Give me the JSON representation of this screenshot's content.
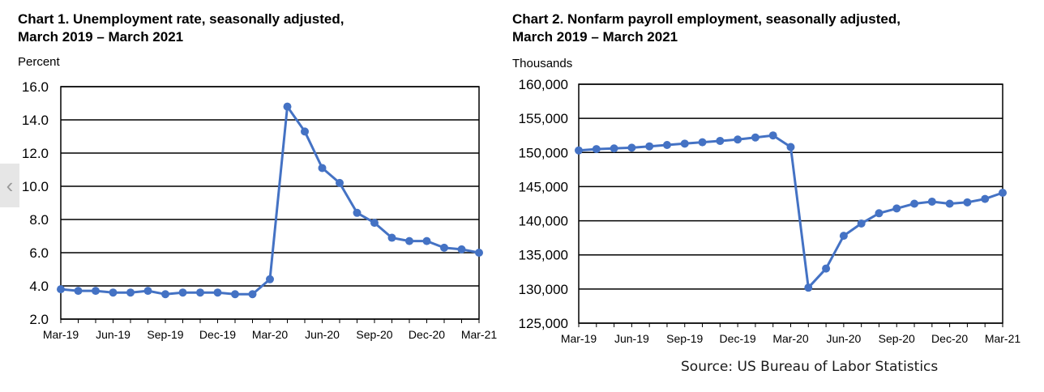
{
  "source": "Source: US Bureau of Labor Statistics",
  "icons": {
    "nav_left": "chevron-left-icon"
  },
  "colors": {
    "series": "#4472C4",
    "grid": "#000000",
    "background": "#ffffff"
  },
  "chart_data": [
    {
      "type": "line",
      "title_line1": "Chart 1. Unemployment rate, seasonally adjusted,",
      "title_line2": "March 2019 – March 2021",
      "xlabel": "",
      "ylabel": "Percent",
      "ylim": [
        2.0,
        16.0
      ],
      "y_ticks": [
        2.0,
        4.0,
        6.0,
        8.0,
        10.0,
        12.0,
        14.0,
        16.0
      ],
      "y_tick_labels": [
        "2.0",
        "4.0",
        "6.0",
        "8.0",
        "10.0",
        "12.0",
        "14.0",
        "16.0"
      ],
      "x_tick_labels": [
        "Mar-19",
        "Jun-19",
        "Sep-19",
        "Dec-19",
        "Mar-20",
        "Jun-20",
        "Sep-20",
        "Dec-20",
        "Mar-21"
      ],
      "grid": true,
      "series": [
        {
          "name": "Unemployment rate",
          "values": [
            3.8,
            3.7,
            3.7,
            3.6,
            3.6,
            3.7,
            3.5,
            3.6,
            3.6,
            3.6,
            3.5,
            3.5,
            4.4,
            14.8,
            13.3,
            11.1,
            10.2,
            8.4,
            7.8,
            6.9,
            6.7,
            6.7,
            6.3,
            6.2,
            6.0
          ]
        }
      ]
    },
    {
      "type": "line",
      "title_line1": "Chart 2. Nonfarm payroll employment, seasonally adjusted,",
      "title_line2": "March 2019 – March 2021",
      "xlabel": "",
      "ylabel": "Thousands",
      "ylim": [
        125000,
        160000
      ],
      "y_ticks": [
        125000,
        130000,
        135000,
        140000,
        145000,
        150000,
        155000,
        160000
      ],
      "y_tick_labels": [
        "125,000",
        "130,000",
        "135,000",
        "140,000",
        "145,000",
        "150,000",
        "155,000",
        "160,000"
      ],
      "x_tick_labels": [
        "Mar-19",
        "Jun-19",
        "Sep-19",
        "Dec-19",
        "Mar-20",
        "Jun-20",
        "Sep-20",
        "Dec-20",
        "Mar-21"
      ],
      "grid": true,
      "series": [
        {
          "name": "Nonfarm payroll employment",
          "values": [
            150300,
            150500,
            150600,
            150700,
            150900,
            151100,
            151300,
            151500,
            151700,
            151900,
            152200,
            152500,
            150800,
            130200,
            133000,
            137800,
            139600,
            141100,
            141800,
            142500,
            142800,
            142500,
            142700,
            143200,
            144100
          ]
        }
      ]
    }
  ]
}
